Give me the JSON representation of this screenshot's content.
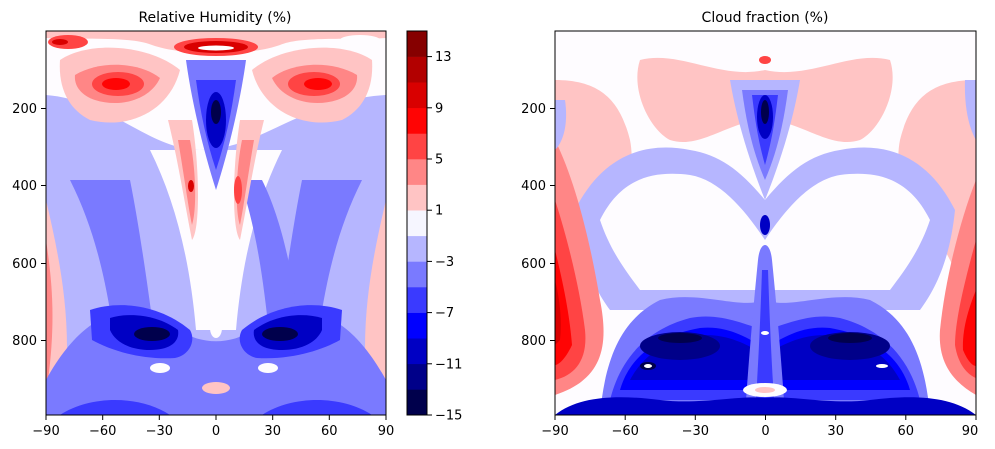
{
  "chart_data": [
    {
      "type": "heatmap",
      "subtype": "filled-contour",
      "title": "Relative Humidity (%)",
      "xlabel": "",
      "ylabel": "",
      "xlim": [
        -90,
        90
      ],
      "ylim": [
        985,
        25
      ],
      "y_axis_inverted": true,
      "x_ticks": [
        -90,
        -60,
        -30,
        0,
        30,
        60,
        90
      ],
      "x_tick_labels": [
        "−90",
        "−60",
        "−30",
        "0",
        "30",
        "60",
        "90"
      ],
      "y_ticks": [
        200,
        400,
        600,
        800
      ],
      "y_tick_labels": [
        "200",
        "400",
        "600",
        "800"
      ],
      "colormap": "seismic",
      "levels": [
        -15,
        -13,
        -11,
        -9,
        -7,
        -5,
        -3,
        -1,
        1,
        3,
        5,
        7,
        9,
        11,
        13,
        15
      ],
      "features": [
        {
          "kind": "positive",
          "lat": 0,
          "plev": 45,
          "lat_width": 20,
          "plev_width": 25,
          "value": 15
        },
        {
          "kind": "positive",
          "lat": -83,
          "plev": 45,
          "lat_width": 10,
          "plev_width": 25,
          "value": 10
        },
        {
          "kind": "positive",
          "lat": -45,
          "plev": 140,
          "lat_width": 25,
          "plev_width": 110,
          "value": 9
        },
        {
          "kind": "positive",
          "lat": 45,
          "plev": 140,
          "lat_width": 25,
          "plev_width": 110,
          "value": 9
        },
        {
          "kind": "positive",
          "lat": -14,
          "plev": 380,
          "lat_width": 14,
          "plev_width": 220,
          "value": 8
        },
        {
          "kind": "positive",
          "lat": 14,
          "plev": 380,
          "lat_width": 14,
          "plev_width": 220,
          "value": 8
        },
        {
          "kind": "positive",
          "lat": -88,
          "plev": 700,
          "lat_width": 8,
          "plev_width": 200,
          "value": 3
        },
        {
          "kind": "positive",
          "lat": 88,
          "plev": 700,
          "lat_width": 8,
          "plev_width": 200,
          "value": 3
        },
        {
          "kind": "negative",
          "lat": 0,
          "plev": 220,
          "lat_width": 10,
          "plev_width": 90,
          "value": -11
        },
        {
          "kind": "negative",
          "lat": -33,
          "plev": 790,
          "lat_width": 25,
          "plev_width": 70,
          "value": -15
        },
        {
          "kind": "negative",
          "lat": 33,
          "plev": 790,
          "lat_width": 25,
          "plev_width": 70,
          "value": -15
        },
        {
          "kind": "negative",
          "lat": -30,
          "plev": 980,
          "lat_width": 20,
          "plev_width": 40,
          "value": -9
        },
        {
          "kind": "negative",
          "lat": 30,
          "plev": 980,
          "lat_width": 20,
          "plev_width": 40,
          "value": -9
        }
      ]
    },
    {
      "type": "heatmap",
      "subtype": "filled-contour",
      "title": "Cloud fraction (%)",
      "xlabel": "",
      "ylabel": "",
      "xlim": [
        -90,
        90
      ],
      "ylim": [
        985,
        25
      ],
      "y_axis_inverted": true,
      "x_ticks": [
        -90,
        -60,
        -30,
        0,
        30,
        60,
        90
      ],
      "x_tick_labels": [
        "−90",
        "−60",
        "−30",
        "0",
        "30",
        "60",
        "90"
      ],
      "y_ticks": [
        200,
        400,
        600,
        800
      ],
      "y_tick_labels": [
        "200",
        "400",
        "600",
        "800"
      ],
      "colormap": "seismic",
      "levels": [
        -15,
        -13,
        -11,
        -9,
        -7,
        -5,
        -3,
        -1,
        1,
        3,
        5,
        7,
        9,
        11,
        13,
        15
      ],
      "features": [
        {
          "kind": "positive",
          "lat": -88,
          "plev": 700,
          "lat_width": 8,
          "plev_width": 250,
          "value": 13
        },
        {
          "kind": "positive",
          "lat": 88,
          "plev": 780,
          "lat_width": 8,
          "plev_width": 200,
          "value": 9
        },
        {
          "kind": "positive",
          "lat": 0,
          "plev": 90,
          "lat_width": 40,
          "plev_width": 60,
          "value": 3
        },
        {
          "kind": "positive",
          "lat": -60,
          "plev": 180,
          "lat_width": 20,
          "plev_width": 80,
          "value": 3
        },
        {
          "kind": "positive",
          "lat": 60,
          "plev": 180,
          "lat_width": 20,
          "plev_width": 80,
          "value": 3
        },
        {
          "kind": "negative",
          "lat": 0,
          "plev": 220,
          "lat_width": 10,
          "plev_width": 100,
          "value": -13
        },
        {
          "kind": "negative",
          "lat": 0,
          "plev": 520,
          "lat_width": 5,
          "plev_width": 80,
          "value": -7
        },
        {
          "kind": "negative",
          "lat": -40,
          "plev": 830,
          "lat_width": 20,
          "plev_width": 120,
          "value": -15
        },
        {
          "kind": "negative",
          "lat": 40,
          "plev": 830,
          "lat_width": 20,
          "plev_width": 120,
          "value": -15
        },
        {
          "kind": "negative",
          "lat": 0,
          "plev": 980,
          "lat_width": 60,
          "plev_width": 25,
          "value": -9
        }
      ]
    }
  ],
  "colorbar": {
    "ticks": [
      -15,
      -11,
      -7,
      -3,
      1,
      5,
      9,
      13
    ],
    "tick_labels": [
      "−15",
      "−11",
      "−7",
      "−3",
      "1",
      "5",
      "9",
      "13"
    ],
    "colors": [
      "#00004c",
      "#000089",
      "#0000c4",
      "#0000ff",
      "#3a3aff",
      "#7a7aff",
      "#b6b6ff",
      "#f6f6ff",
      "#ffc4c4",
      "#ff8686",
      "#ff4444",
      "#ff0404",
      "#d90000",
      "#b20000",
      "#860000"
    ]
  },
  "colors": {
    "minus15": "#00004c",
    "minus13": "#000089",
    "minus11": "#0000c4",
    "minus9": "#0000ff",
    "minus7": "#3a3aff",
    "minus5": "#7a7aff",
    "minus3": "#b6b6ff",
    "near_zero": "#fefcff",
    "plus1": "#ffc4c4",
    "plus3": "#ff8686",
    "plus5": "#ff4444",
    "plus7": "#ff0404",
    "plus9": "#d90000",
    "plus11": "#b20000",
    "plus13": "#860000"
  }
}
